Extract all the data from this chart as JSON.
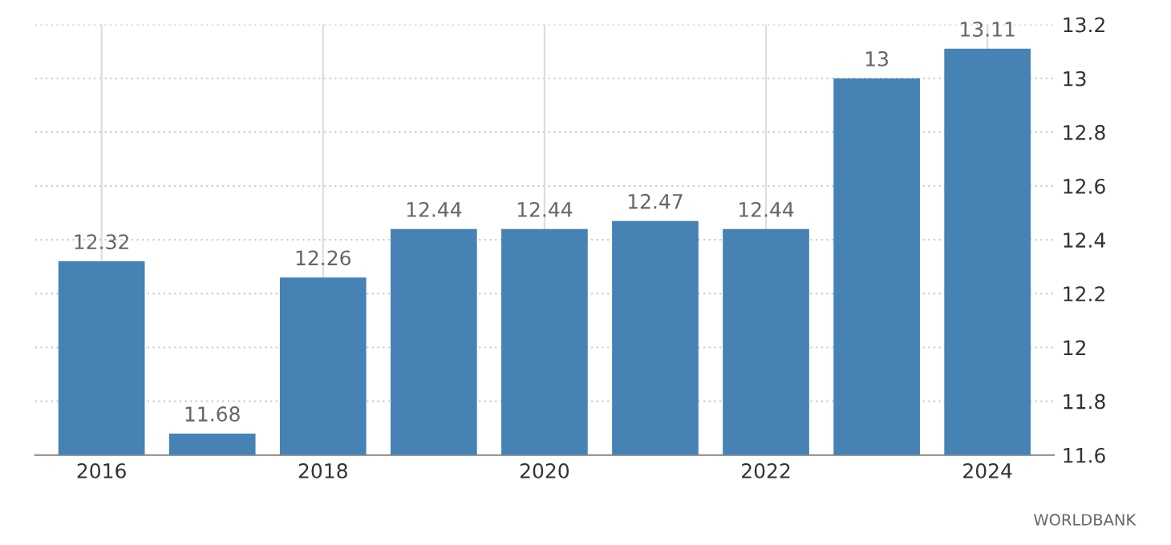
{
  "chart_data": {
    "type": "bar",
    "categories": [
      "2016",
      null,
      "2018",
      null,
      "2020",
      null,
      "2022",
      null,
      "2024"
    ],
    "values": [
      12.32,
      11.68,
      12.26,
      12.44,
      12.44,
      12.47,
      12.44,
      13,
      13.11
    ],
    "color": "#4682b4",
    "ylim": [
      11.6,
      13.2
    ],
    "yticks": [
      11.6,
      11.8,
      12,
      12.2,
      12.4,
      12.6,
      12.8,
      13,
      13.2
    ],
    "grid": true,
    "data_labels": true,
    "annotations": [
      "WORLDBANK"
    ]
  }
}
